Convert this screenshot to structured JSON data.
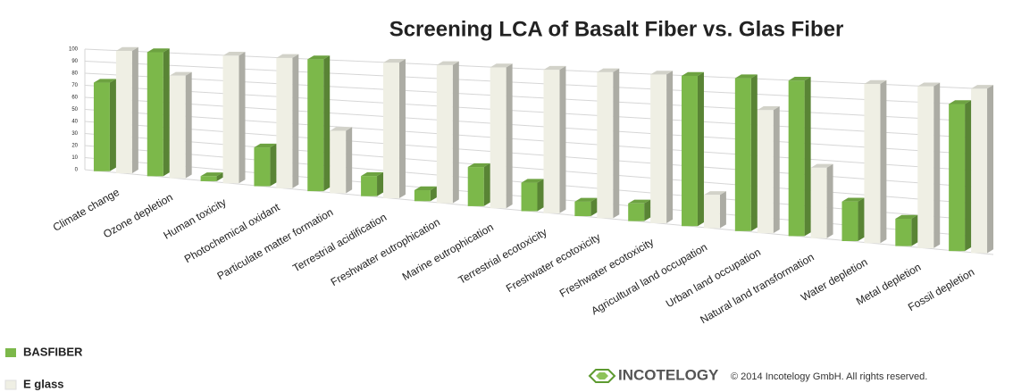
{
  "chart_data": {
    "type": "bar",
    "title": "Screening LCA of Basalt Fiber vs. Glas Fiber",
    "categories": [
      "Climate change",
      "Ozone depletion",
      "Human toxicity",
      "Photochemical oxidant",
      "Particulate matter formation",
      "Terrestrial acidification",
      "Freshwater eutrophication",
      "Marine eutrophication",
      "Terrestrial ecotoxicity",
      "Freshwater ecotoxicity",
      "Freshwater ecotoxicity",
      "Agricultural land occupation",
      "Urban land occupation",
      "Natural land transformation",
      "Water depletion",
      "Metal depletion",
      "Fossil depletion"
    ],
    "series": [
      {
        "name": "BASFIBER",
        "color": "#7cb84a",
        "values": [
          73,
          100,
          4,
          30,
          100,
          15,
          8,
          28,
          20,
          10,
          12,
          100,
          100,
          100,
          25,
          17,
          90
        ]
      },
      {
        "name": "E glass",
        "color": "#efefe4",
        "values": [
          100,
          82,
          100,
          100,
          47,
          100,
          100,
          100,
          100,
          100,
          100,
          22,
          80,
          45,
          100,
          100,
          100
        ]
      }
    ],
    "ylim": [
      0,
      100
    ],
    "yticks": [
      0,
      10,
      20,
      30,
      40,
      50,
      60,
      70,
      80,
      90,
      100
    ],
    "grid": true,
    "legend": "bottom-left"
  },
  "footer": {
    "logo": "INCOTELOGY",
    "copyright": "© 2014 Incotelogy GmbH. All rights reserved."
  }
}
